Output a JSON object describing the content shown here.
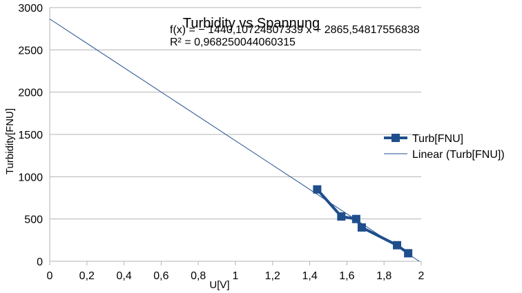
{
  "chart_data": {
    "type": "scatter",
    "title": "Turbidity vs Spannung",
    "xlabel": "U[V]",
    "ylabel": "Turbidity[FNU]",
    "xlim": [
      0,
      2
    ],
    "ylim": [
      0,
      3000
    ],
    "x_ticks": [
      "0",
      "0,2",
      "0,4",
      "0,6",
      "0,8",
      "1",
      "1,2",
      "1,4",
      "1,6",
      "1,8",
      "2"
    ],
    "y_ticks": [
      "0",
      "500",
      "1000",
      "1500",
      "2000",
      "2500",
      "3000"
    ],
    "grid": "horizontal",
    "legend_position": "right",
    "color": "#1F4E8C",
    "series": [
      {
        "name": "Turb[FNU]",
        "marker": "square",
        "points": [
          {
            "x": 1.44,
            "y": 850
          },
          {
            "x": 1.57,
            "y": 530
          },
          {
            "x": 1.65,
            "y": 500
          },
          {
            "x": 1.68,
            "y": 400
          },
          {
            "x": 1.87,
            "y": 190
          },
          {
            "x": 1.93,
            "y": 95
          }
        ]
      }
    ],
    "trendline": {
      "name": "Linear (Turb[FNU])",
      "slope": -1440.10724307339,
      "intercept": 2865.54817556838,
      "equation": "f(x) = − 1440,10724307339 x + 2865,54817556838",
      "r_squared": "R² = 0,968250044060315"
    }
  }
}
